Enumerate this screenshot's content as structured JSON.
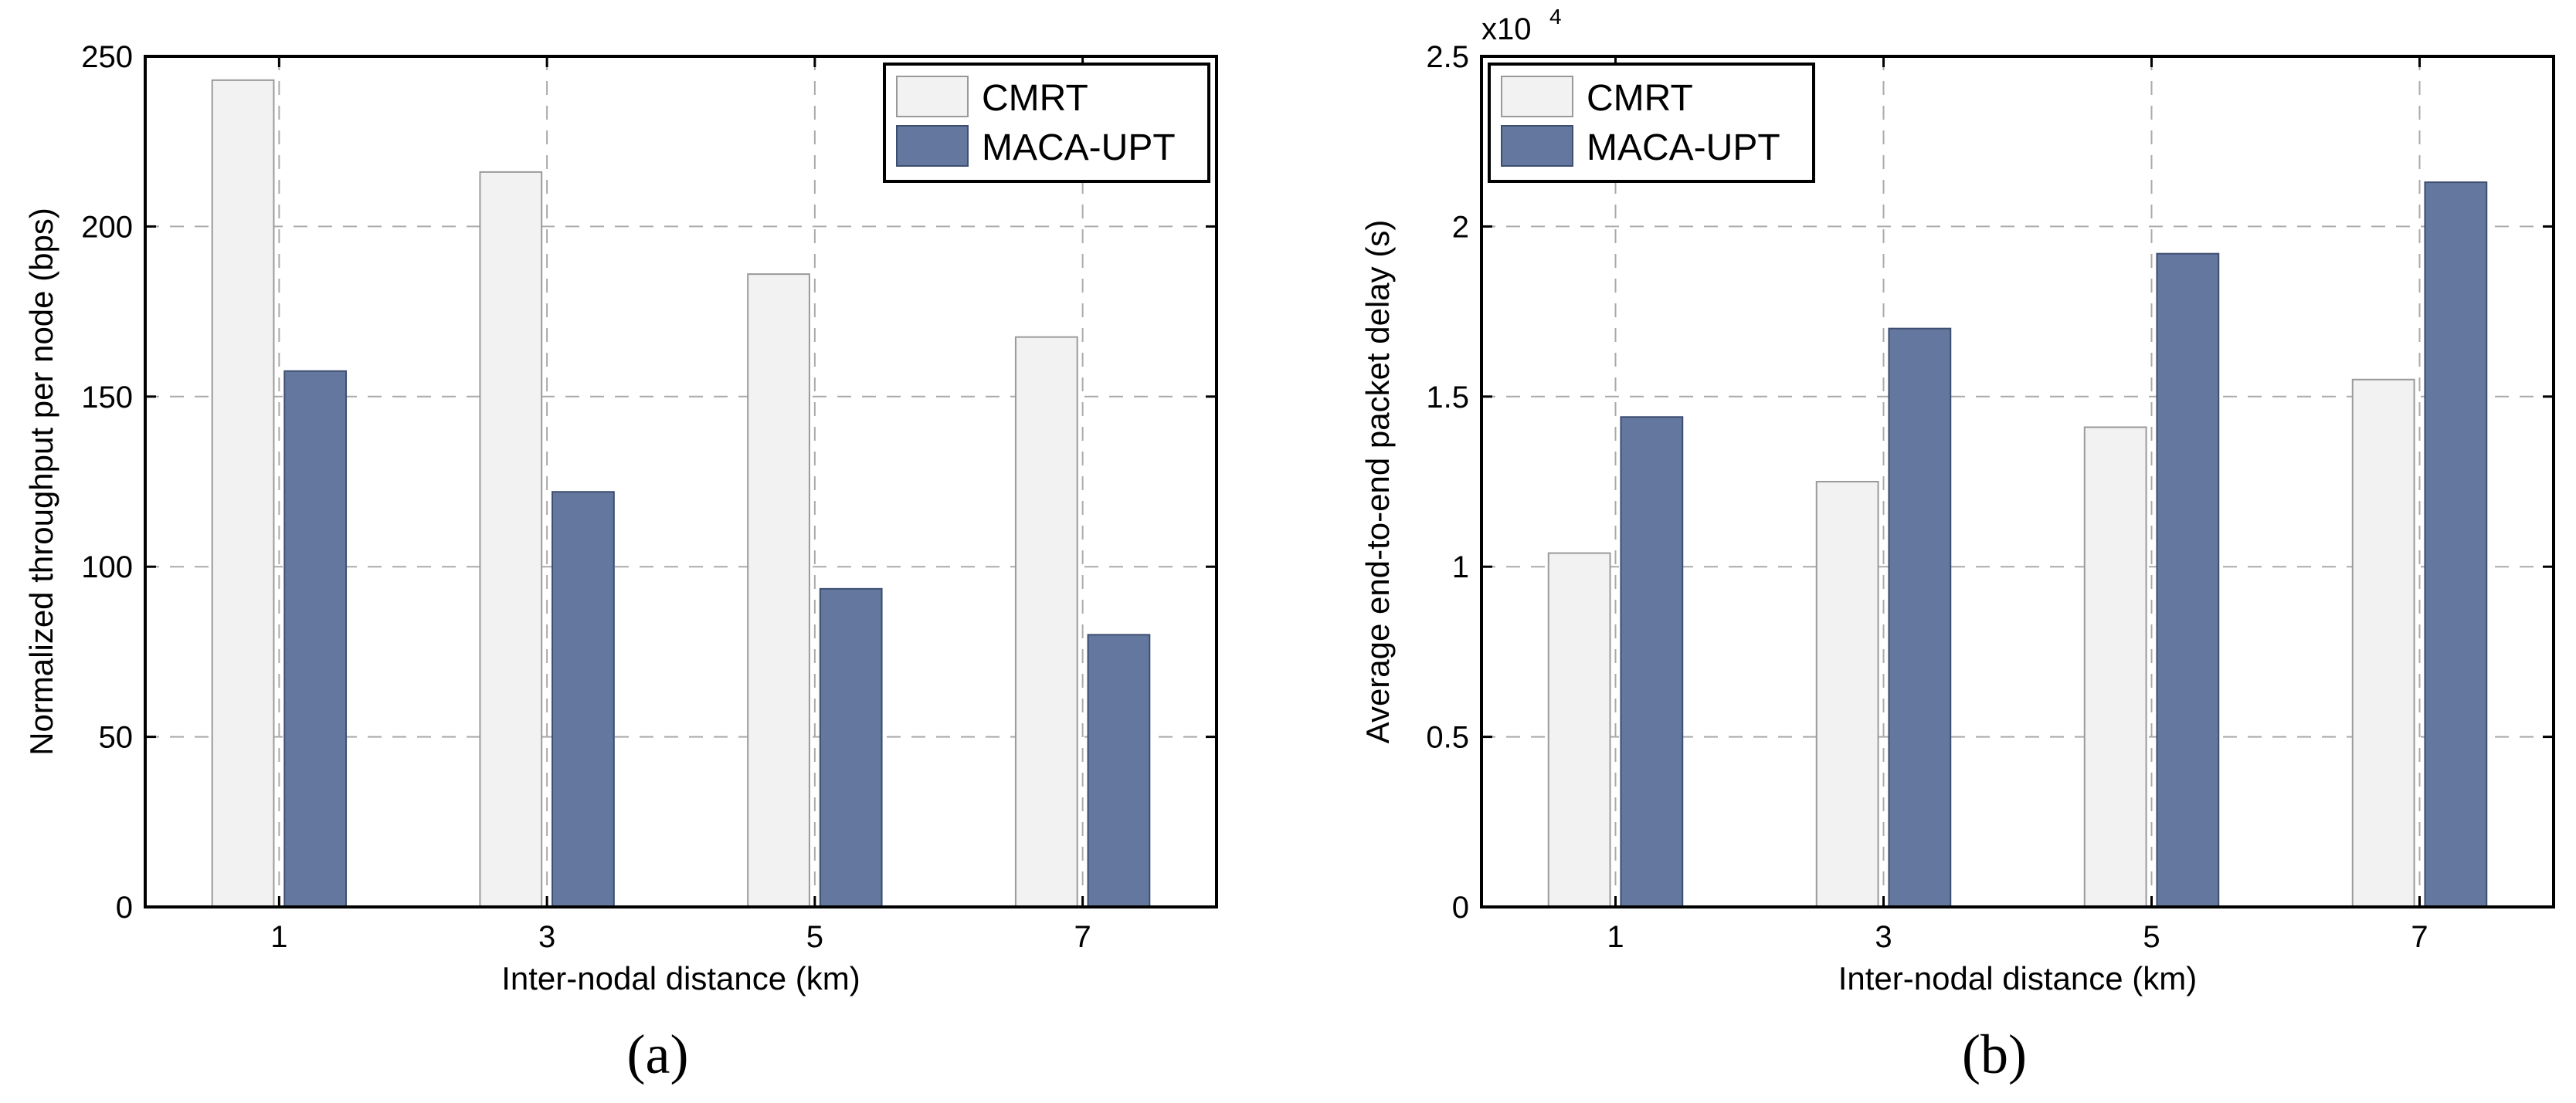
{
  "chart_data": [
    {
      "type": "bar",
      "id": "a",
      "caption": "(a)",
      "categories": [
        "1",
        "3",
        "5",
        "7"
      ],
      "series": [
        {
          "name": "CMRT",
          "color": "#f2f2f2",
          "values": [
            243,
            216,
            186,
            167.5
          ]
        },
        {
          "name": "MACA-UPT",
          "color": "#64789f",
          "values": [
            157.5,
            122,
            93.5,
            80
          ]
        }
      ],
      "xlabel": "Inter-nodal distance (km)",
      "ylabel": "Normalized throughput per node (bps)",
      "ylim": [
        0,
        250
      ],
      "yticks": [
        "0",
        "50",
        "100",
        "150",
        "200",
        "250"
      ],
      "ytick_values": [
        0,
        50,
        100,
        150,
        200,
        250
      ],
      "grid": true,
      "legend": "top-right"
    },
    {
      "type": "bar",
      "id": "b",
      "caption": "(b)",
      "categories": [
        "1",
        "3",
        "5",
        "7"
      ],
      "series": [
        {
          "name": "CMRT",
          "color": "#f2f2f2",
          "values": [
            1.04,
            1.25,
            1.41,
            1.55
          ]
        },
        {
          "name": "MACA-UPT",
          "color": "#64789f",
          "values": [
            1.44,
            1.7,
            1.92,
            2.13
          ]
        }
      ],
      "xlabel": "Inter-nodal distance (km)",
      "ylabel": "Average end-to-end packet delay (s)",
      "ylim": [
        0,
        2.5
      ],
      "yticks": [
        "0",
        "0.5",
        "1",
        "1.5",
        "2",
        "2.5"
      ],
      "ytick_values": [
        0,
        0.5,
        1,
        1.5,
        2,
        2.5
      ],
      "exponent_base": "x10",
      "exponent_power": "4",
      "grid": true,
      "legend": "top-left"
    }
  ]
}
